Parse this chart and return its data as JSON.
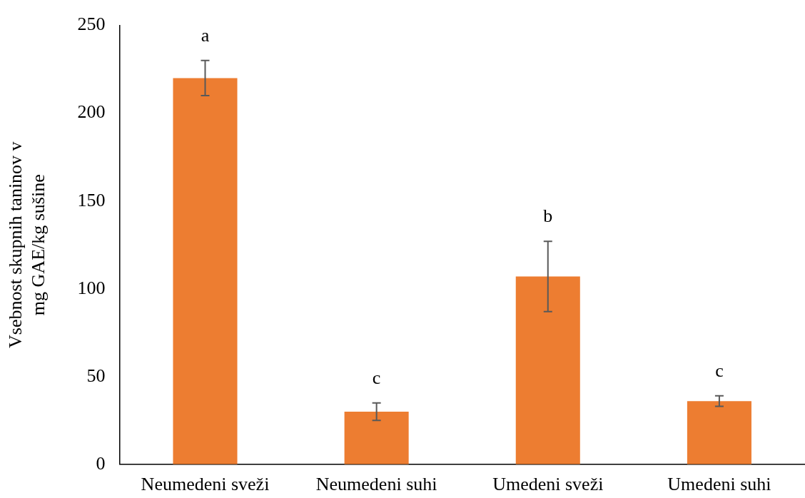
{
  "chart_data": {
    "type": "bar",
    "ylabel": "Vsebnost skupnih taninov v mg GAE/kg sušine",
    "categories": [
      "Neumedeni sveži",
      "Neumedeni suhi",
      "Umedeni sveži",
      "Umedeni suhi"
    ],
    "values": [
      220,
      30,
      107,
      36
    ],
    "errors": [
      10,
      5,
      20,
      3
    ],
    "color": "#ed7d31",
    "ylim": [
      0,
      250
    ],
    "yticks": [
      0,
      50,
      100,
      150,
      200,
      250
    ],
    "grid": false,
    "legend": false,
    "annotations": [
      "a",
      "c",
      "b",
      "c"
    ]
  }
}
